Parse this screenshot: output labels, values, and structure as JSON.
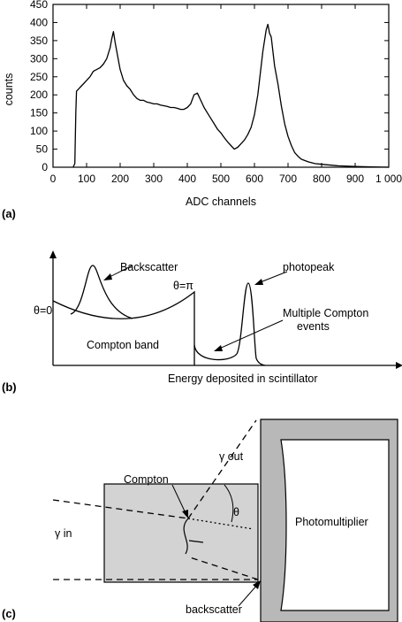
{
  "panel_a": {
    "panel_label": "(a)",
    "chart_data": {
      "type": "line",
      "xlabel": "ADC channels",
      "ylabel": "counts",
      "xlim": [
        0,
        1000
      ],
      "ylim": [
        0,
        450
      ],
      "x_ticks": [
        "0",
        "100",
        "200",
        "300",
        "400",
        "500",
        "600",
        "700",
        "800",
        "900",
        "1 000"
      ],
      "y_ticks": [
        "0",
        "50",
        "100",
        "150",
        "200",
        "250",
        "300",
        "350",
        "400",
        "450"
      ],
      "grid": false,
      "series": [
        {
          "x": [
            60,
            65,
            68,
            70,
            75,
            80,
            90,
            100,
            110,
            120,
            130,
            140,
            150,
            160,
            170,
            175,
            180,
            185,
            190,
            200,
            210,
            220,
            230,
            240,
            250,
            260,
            270,
            280,
            290,
            300,
            310,
            320,
            330,
            340,
            350,
            360,
            370,
            380,
            390,
            400,
            410,
            420,
            430,
            440,
            450,
            460,
            470,
            480,
            490,
            500,
            510,
            520,
            530,
            540,
            550,
            560,
            570,
            580,
            590,
            600,
            610,
            620,
            625,
            630,
            635,
            640,
            645,
            650,
            660,
            670,
            680,
            690,
            700,
            710,
            720,
            730,
            740,
            760,
            780,
            800,
            850,
            900,
            950,
            1000
          ],
          "y": [
            0,
            10,
            150,
            210,
            215,
            220,
            230,
            240,
            250,
            265,
            270,
            275,
            285,
            300,
            330,
            355,
            375,
            345,
            320,
            270,
            240,
            225,
            215,
            200,
            190,
            185,
            185,
            180,
            178,
            175,
            175,
            172,
            170,
            168,
            165,
            165,
            163,
            160,
            160,
            165,
            175,
            200,
            205,
            185,
            165,
            150,
            135,
            120,
            105,
            95,
            82,
            70,
            60,
            50,
            55,
            65,
            75,
            90,
            110,
            145,
            200,
            280,
            320,
            350,
            380,
            395,
            370,
            360,
            280,
            230,
            170,
            120,
            85,
            60,
            40,
            30,
            22,
            15,
            10,
            8,
            4,
            2,
            1,
            0
          ]
        }
      ]
    }
  },
  "panel_b": {
    "panel_label": "(b)",
    "labels": {
      "theta0": "θ=0",
      "theta_pi": "θ=π",
      "backscatter": "Backscatter",
      "photopeak": "photopeak",
      "multi_line1": "Multiple Compton",
      "multi_line2": "events",
      "compton_band": "Compton band",
      "xaxis": "Energy deposited in scintillator"
    }
  },
  "panel_c": {
    "panel_label": "(c)",
    "labels": {
      "compton": "Compton",
      "gamma_out": "γ out",
      "theta": "θ",
      "gamma_in": "γ in",
      "photomultiplier": "Photomultiplier",
      "backscatter": "backscatter"
    },
    "colors": {
      "scintillator": "#d3d3d3",
      "pmt_frame": "#b8b8b8"
    }
  }
}
